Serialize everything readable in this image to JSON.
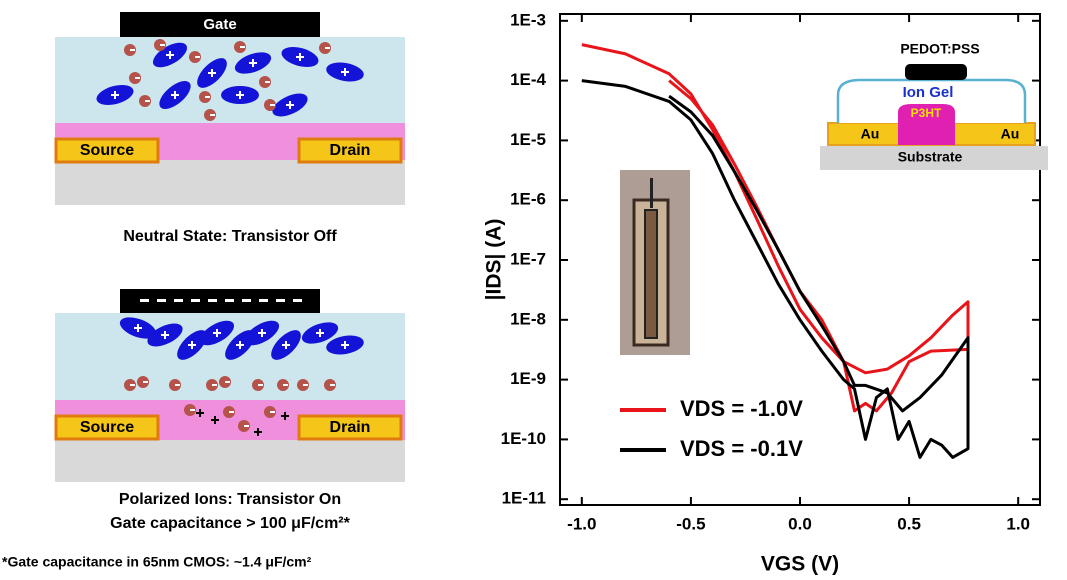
{
  "diagrams": {
    "neutral": {
      "gate": "Gate",
      "source": "Source",
      "drain": "Drain",
      "caption": "Neutral State: Transistor Off"
    },
    "polarized": {
      "source": "Source",
      "drain": "Drain",
      "caption": "Polarized Ions: Transistor On",
      "caption2": "Gate capacitance > 100 μF/cm²*"
    },
    "footnote": "*Gate capacitance in 65nm CMOS: ~1.4 μF/cm²"
  },
  "inset": {
    "top": "PEDOT:PSS",
    "gel": "Ion Gel",
    "semiconductor": "P3HT",
    "left_contact": "Au",
    "right_contact": "Au",
    "substrate": "Substrate"
  },
  "chart_data": {
    "type": "line",
    "x_label": "VGS (V)",
    "y_label": "|IDS| (A)",
    "ylog": true,
    "xlim": [
      -1.1,
      1.1
    ],
    "ylim": [
      8e-12,
      0.0013
    ],
    "xticks": [
      {
        "value": -1.0,
        "label": "-1.0"
      },
      {
        "value": -0.5,
        "label": "-0.5"
      },
      {
        "value": 0.0,
        "label": "0.0"
      },
      {
        "value": 0.5,
        "label": "0.5"
      },
      {
        "value": 1.0,
        "label": "1.0"
      }
    ],
    "yticks": [
      {
        "value": 1e-11,
        "label": "1E-11"
      },
      {
        "value": 1e-10,
        "label": "1E-10"
      },
      {
        "value": 1e-09,
        "label": "1E-9"
      },
      {
        "value": 1e-08,
        "label": "1E-8"
      },
      {
        "value": 1e-07,
        "label": "1E-7"
      },
      {
        "value": 1e-06,
        "label": "1E-6"
      },
      {
        "value": 1e-05,
        "label": "1E-5"
      },
      {
        "value": 0.0001,
        "label": "1E-4"
      },
      {
        "value": 0.001,
        "label": "1E-3"
      }
    ],
    "series": [
      {
        "name": "VDS = -1.0V",
        "color": "#e8141a",
        "x": [
          -1.0,
          -0.8,
          -0.6,
          -0.5,
          -0.4,
          -0.3,
          -0.2,
          -0.1,
          0.0,
          0.1,
          0.2,
          0.3,
          0.4,
          0.5,
          0.6,
          0.7,
          0.77,
          0.77,
          0.6,
          0.5,
          0.42,
          0.35,
          0.3,
          0.25,
          0.2,
          0.1,
          0.0,
          -0.1,
          -0.2,
          -0.3,
          -0.4,
          -0.5,
          -0.6
        ],
        "values": [
          0.0004,
          0.00028,
          0.00013,
          6e-05,
          1.5e-05,
          3e-06,
          5e-07,
          8e-08,
          1.5e-08,
          5e-09,
          2e-09,
          1.3e-09,
          1.5e-09,
          2.5e-09,
          5e-09,
          1.2e-08,
          2e-08,
          3.2e-09,
          3e-09,
          2e-09,
          6e-10,
          3e-10,
          4e-10,
          3e-10,
          2e-09,
          1e-08,
          3e-08,
          1.5e-07,
          8e-07,
          4e-06,
          1.8e-05,
          5e-05,
          0.0001
        ]
      },
      {
        "name": "VDS = -0.1V",
        "color": "#000000",
        "x": [
          -1.0,
          -0.8,
          -0.6,
          -0.5,
          -0.4,
          -0.3,
          -0.2,
          -0.1,
          0.0,
          0.1,
          0.2,
          0.25,
          0.3,
          0.35,
          0.4,
          0.45,
          0.5,
          0.55,
          0.6,
          0.65,
          0.7,
          0.77,
          0.77,
          0.65,
          0.55,
          0.47,
          0.4,
          0.3,
          0.25,
          0.2,
          0.1,
          0.0,
          -0.1,
          -0.2,
          -0.3,
          -0.4,
          -0.5,
          -0.6
        ],
        "values": [
          0.0001,
          8e-05,
          4.5e-05,
          2.2e-05,
          6e-06,
          1e-06,
          2e-07,
          4e-08,
          1e-08,
          3e-09,
          1e-09,
          7e-10,
          1e-10,
          5e-10,
          7e-10,
          1e-10,
          2e-10,
          5e-11,
          1e-10,
          8e-11,
          5e-11,
          7e-11,
          5e-09,
          1.2e-09,
          5e-10,
          3e-10,
          6e-10,
          8e-10,
          8e-10,
          2e-09,
          8e-09,
          3e-08,
          1.5e-07,
          7e-07,
          3e-06,
          1.2e-05,
          3e-05,
          5.5e-05
        ]
      }
    ]
  }
}
